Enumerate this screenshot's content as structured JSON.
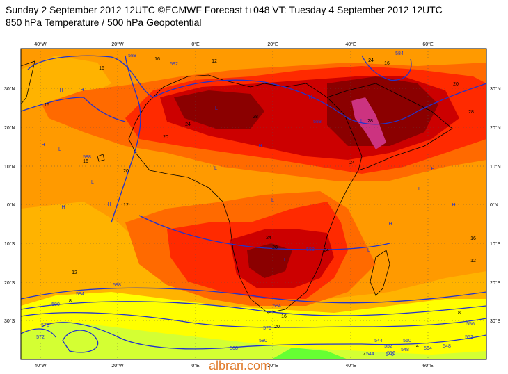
{
  "titles": {
    "line1": "Sunday 2 September 2012 12UTC ©ECMWF Forecast t+048 VT: Tuesday 4 September 2012 12UTC",
    "line2": "850 hPa Temperature / 500 hPa Geopotential"
  },
  "lon_ticks": [
    "40°W",
    "20°W",
    "0°E",
    "20°E",
    "40°E",
    "60°E"
  ],
  "lat_ticks": [
    "30°N",
    "20°N",
    "10°N",
    "0°N",
    "10°S",
    "20°S",
    "30°S"
  ],
  "temperature_labels": [
    "16",
    "16",
    "12",
    "20",
    "24",
    "28",
    "28",
    "24",
    "20",
    "16",
    "16",
    "16",
    "12",
    "12",
    "8",
    "4",
    "24",
    "28",
    "24",
    "28",
    "24",
    "20",
    "16",
    "16",
    "12",
    "8",
    "4",
    "20"
  ],
  "geopotential_labels": [
    "588",
    "588",
    "592",
    "588",
    "584",
    "580",
    "576",
    "572",
    "568",
    "564",
    "560",
    "556",
    "552",
    "548",
    "544",
    "540",
    "576",
    "580",
    "584",
    "588",
    "556",
    "552",
    "548",
    "544",
    "584",
    "588"
  ],
  "pressure_markers": [
    "H",
    "H",
    "H",
    "H",
    "L",
    "L",
    "L",
    "L",
    "H",
    "L",
    "H",
    "L",
    "H",
    "L",
    "H",
    "H",
    "L",
    "L",
    "H",
    "L"
  ],
  "palette": {
    "yellow": "#ffff00",
    "light_orange": "#ffb300",
    "orange": "#ff9a00",
    "dark_orange": "#ff6a00",
    "red": "#ff2a00",
    "dark_red": "#cc0000",
    "maroon": "#8b0000",
    "magenta": "#cc3380",
    "green_yellow": "#d4ff33",
    "green": "#66ff33",
    "contour_blue": "#2233cc",
    "coast_black": "#000000"
  },
  "watermark": "albrari.com"
}
